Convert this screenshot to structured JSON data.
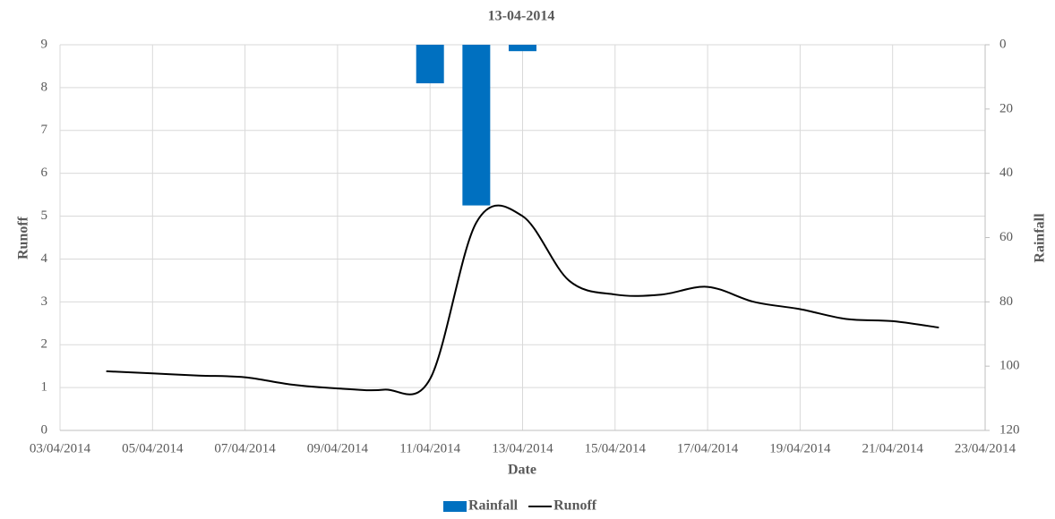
{
  "chart_data": {
    "type": "bar-line",
    "title": "13-04-2014",
    "x_label": "Date",
    "y_label": "Runoff",
    "y2_label": "Rainfall",
    "xlim": [
      "03/04/2014",
      "23/04/2014"
    ],
    "xticks": [
      "03/04/2014",
      "05/04/2014",
      "07/04/2014",
      "09/04/2014",
      "11/04/2014",
      "13/04/2014",
      "15/04/2014",
      "17/04/2014",
      "19/04/2014",
      "21/04/2014",
      "23/04/2014"
    ],
    "ylim": [
      0,
      9
    ],
    "yticks": [
      0,
      1,
      2,
      3,
      4,
      5,
      6,
      7,
      8,
      9
    ],
    "y2lim": [
      120,
      0
    ],
    "y2ticks": [
      0,
      20,
      40,
      60,
      80,
      100,
      120
    ],
    "grid": true,
    "legend": "bottom",
    "series": [
      {
        "name": "Rainfall",
        "type": "bar",
        "axis": "y2",
        "color": "#0070c0",
        "x": [
          "11/04/2014",
          "12/04/2014",
          "13/04/2014"
        ],
        "values": [
          12,
          50,
          2
        ]
      },
      {
        "name": "Runoff",
        "type": "line",
        "color": "#000000",
        "x": [
          "04/04/2014",
          "05/04/2014",
          "06/04/2014",
          "07/04/2014",
          "08/04/2014",
          "09/04/2014",
          "10/04/2014",
          "11/04/2014",
          "12/04/2014",
          "13/04/2014",
          "14/04/2014",
          "15/04/2014",
          "16/04/2014",
          "17/04/2014",
          "18/04/2014",
          "19/04/2014",
          "20/04/2014",
          "21/04/2014",
          "22/04/2014"
        ],
        "values": [
          1.38,
          1.33,
          1.28,
          1.24,
          1.07,
          0.98,
          0.95,
          1.2,
          4.85,
          5.0,
          3.5,
          3.17,
          3.17,
          3.35,
          3.0,
          2.83,
          2.6,
          2.55,
          2.4
        ]
      }
    ]
  }
}
